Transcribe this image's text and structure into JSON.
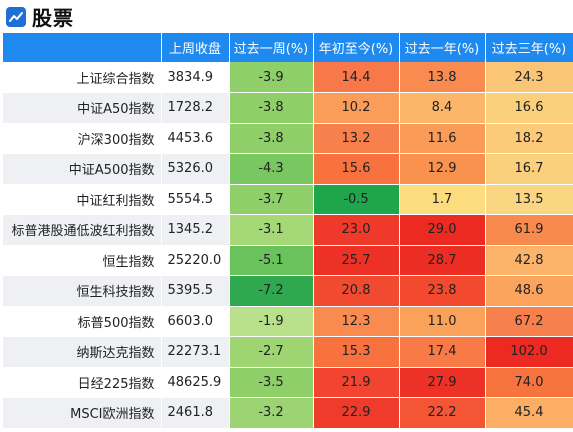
{
  "header": {
    "title": "股票"
  },
  "columns": [
    "",
    "上周收盘",
    "过去一周(%)",
    "年初至今(%)",
    "过去一年(%)",
    "过去三年(%)"
  ],
  "rows": [
    {
      "name": "上证综合指数",
      "close": "3834.9",
      "w": "-3.9",
      "ytd": "14.4",
      "y1": "13.8",
      "y3": "24.3"
    },
    {
      "name": "中证A50指数",
      "close": "1728.2",
      "w": "-3.8",
      "ytd": "10.2",
      "y1": "8.4",
      "y3": "16.6"
    },
    {
      "name": "沪深300指数",
      "close": "4453.6",
      "w": "-3.8",
      "ytd": "13.2",
      "y1": "11.6",
      "y3": "18.2"
    },
    {
      "name": "中证A500指数",
      "close": "5326.0",
      "w": "-4.3",
      "ytd": "15.6",
      "y1": "12.9",
      "y3": "16.7"
    },
    {
      "name": "中证红利指数",
      "close": "5554.5",
      "w": "-3.7",
      "ytd": "-0.5",
      "y1": "1.7",
      "y3": "13.5"
    },
    {
      "name": "标普港股通低波红利指数",
      "close": "1345.2",
      "w": "-3.1",
      "ytd": "23.0",
      "y1": "29.0",
      "y3": "61.9"
    },
    {
      "name": "恒生指数",
      "close": "25220.0",
      "w": "-5.1",
      "ytd": "25.7",
      "y1": "28.7",
      "y3": "42.8"
    },
    {
      "name": "恒生科技指数",
      "close": "5395.5",
      "w": "-7.2",
      "ytd": "20.8",
      "y1": "23.8",
      "y3": "48.6"
    },
    {
      "name": "标普500指数",
      "close": "6603.0",
      "w": "-1.9",
      "ytd": "12.3",
      "y1": "11.0",
      "y3": "67.2"
    },
    {
      "name": "纳斯达克指数",
      "close": "22273.1",
      "w": "-2.7",
      "ytd": "15.3",
      "y1": "17.4",
      "y3": "102.0"
    },
    {
      "name": "日经225指数",
      "close": "48625.9",
      "w": "-3.5",
      "ytd": "21.9",
      "y1": "27.9",
      "y3": "74.0"
    },
    {
      "name": "MSCI欧洲指数",
      "close": "2461.8",
      "w": "-3.2",
      "ytd": "22.9",
      "y1": "22.2",
      "y3": "45.4"
    }
  ],
  "colors": {
    "header_bg": "#1e8af0",
    "logo": "#1e6fd6",
    "heat": {
      "w": [
        "#8fcf6a",
        "#8fcf6a",
        "#8fcf6a",
        "#79c761",
        "#8fcf6a",
        "#a5d978",
        "#69c25c",
        "#2fa84f",
        "#b9e08a",
        "#9fd472",
        "#8fcf6a",
        "#9cd373"
      ],
      "ytd": [
        "#f8784a",
        "#fa9d5a",
        "#f8804c",
        "#f7723f",
        "#1fa64c",
        "#ef3a2b",
        "#ee3126",
        "#f24a30",
        "#f98a50",
        "#f7723f",
        "#f24430",
        "#ef3b2c"
      ],
      "y1": [
        "#f98a50",
        "#fbb66a",
        "#fa9b58",
        "#fa924f",
        "#fbdc7e",
        "#ec2a22",
        "#ec2d24",
        "#f2492f",
        "#fba25a",
        "#f87a47",
        "#ee3126",
        "#f35535"
      ],
      "y3": [
        "#fbc577",
        "#fbd07d",
        "#fbcb7b",
        "#fbd07d",
        "#fbd682",
        "#f98a4e",
        "#fbb469",
        "#fba45e",
        "#f8804c",
        "#ec2a22",
        "#f7743f",
        "#fbae64"
      ]
    }
  }
}
